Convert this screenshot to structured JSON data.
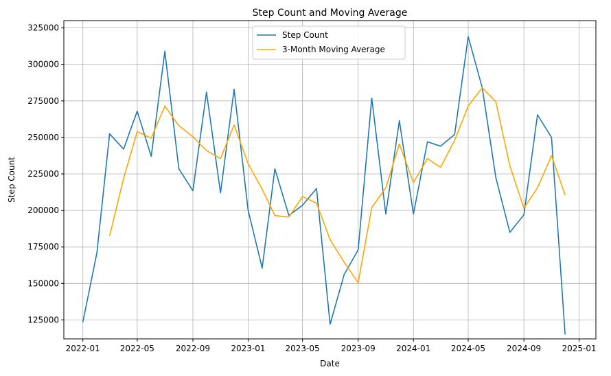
{
  "chart_data": {
    "type": "line",
    "title": "Step Count and Moving Average",
    "xlabel": "Date",
    "ylabel": "Step Count",
    "x": [
      "2022-01",
      "2022-02",
      "2022-03",
      "2022-04",
      "2022-05",
      "2022-06",
      "2022-07",
      "2022-08",
      "2022-09",
      "2022-10",
      "2022-11",
      "2022-12",
      "2023-01",
      "2023-02",
      "2023-03",
      "2023-04",
      "2023-05",
      "2023-06",
      "2023-07",
      "2023-08",
      "2023-09",
      "2023-10",
      "2023-11",
      "2023-12",
      "2024-01",
      "2024-02",
      "2024-03",
      "2024-04",
      "2024-05",
      "2024-06",
      "2024-07",
      "2024-08",
      "2024-09",
      "2024-10",
      "2024-11",
      "2024-12"
    ],
    "series": [
      {
        "name": "Step Count",
        "color": "#1f77b4",
        "values": [
          123500,
          171000,
          252500,
          242000,
          268000,
          237000,
          309000,
          228500,
          213500,
          281000,
          212000,
          283000,
          200000,
          160500,
          228500,
          196500,
          203500,
          215000,
          122000,
          156000,
          173000,
          277000,
          197500,
          261500,
          197500,
          247000,
          244000,
          252000,
          319000,
          284000,
          222500,
          185000,
          197000,
          265500,
          250000,
          115000
        ]
      },
      {
        "name": "3-Month Moving Average",
        "color": "#ffa500",
        "values": [
          null,
          null,
          182500,
          222000,
          254000,
          249500,
          271500,
          258000,
          250500,
          241000,
          235500,
          258500,
          232000,
          214500,
          196500,
          195500,
          209500,
          205000,
          180000,
          164500,
          150500,
          202000,
          215500,
          245500,
          219000,
          235500,
          229500,
          248000,
          271500,
          284000,
          274500,
          230500,
          201500,
          215500,
          237500,
          210500
        ]
      }
    ],
    "xticks": [
      "2022-01",
      "2022-05",
      "2022-09",
      "2023-01",
      "2023-05",
      "2023-09",
      "2024-01",
      "2024-05",
      "2024-09",
      "2025-01"
    ],
    "yticks": [
      125000,
      150000,
      175000,
      200000,
      225000,
      250000,
      275000,
      300000,
      325000
    ],
    "ylim": [
      112000,
      330000
    ],
    "xlim": [
      "2021-11-20",
      "2025-02-07"
    ],
    "grid": true,
    "legend_position": "top-center"
  }
}
